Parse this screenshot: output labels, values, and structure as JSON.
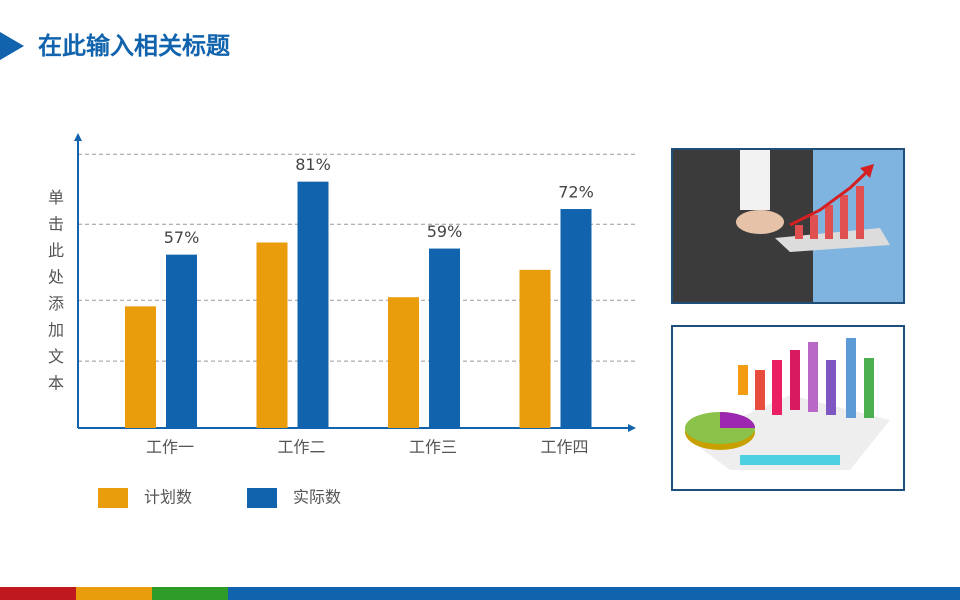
{
  "title": "在此输入相关标题",
  "chart_data": {
    "type": "bar",
    "y_label": "单击此处添加文本",
    "categories": [
      "工作一",
      "工作二",
      "工作三",
      "工作四"
    ],
    "series": [
      {
        "name": "计划数",
        "color": "#e99d0d",
        "values": [
          40,
          61,
          43,
          52
        ]
      },
      {
        "name": "实际数",
        "color": "#1063ac",
        "values": [
          57,
          81,
          59,
          72
        ],
        "value_labels": [
          "57%",
          "81%",
          "59%",
          "72%"
        ]
      }
    ],
    "ylim": [
      0,
      97
    ],
    "gridlines": [
      22,
      42,
      67,
      90
    ]
  }
}
